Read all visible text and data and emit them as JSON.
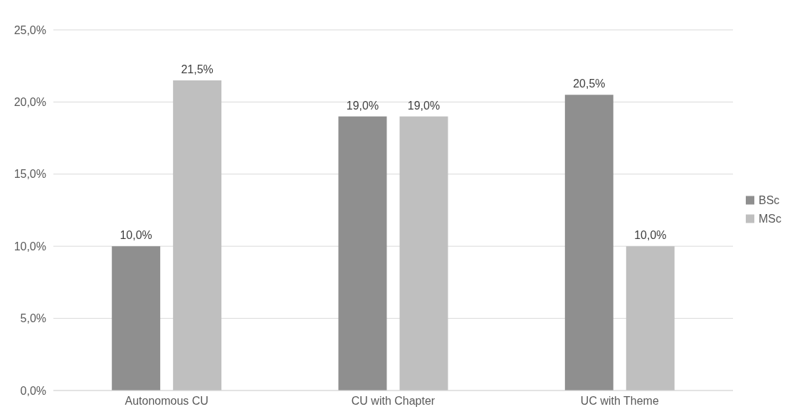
{
  "chart_data": {
    "type": "bar",
    "categories": [
      "Autonomous CU",
      "CU with Chapter",
      "UC with Theme"
    ],
    "series": [
      {
        "name": "BSc",
        "color": "#8f8f8f",
        "values": [
          10,
          19,
          20.5
        ],
        "value_labels": [
          "10,0%",
          "19,0%",
          "20,5%"
        ]
      },
      {
        "name": "MSc",
        "color": "#bfbfbf",
        "values": [
          21.5,
          19,
          10
        ],
        "value_labels": [
          "21,5%",
          "19,0%",
          "10,0%"
        ]
      }
    ],
    "ylim": [
      0,
      25
    ],
    "yticks": [
      {
        "value": 0,
        "label": "0,0%"
      },
      {
        "value": 5,
        "label": "5,0%"
      },
      {
        "value": 10,
        "label": "10,0%"
      },
      {
        "value": 15,
        "label": "15,0%"
      },
      {
        "value": 20,
        "label": "20,0%"
      },
      {
        "value": 25,
        "label": "25,0%"
      }
    ],
    "grid": "y",
    "legend": "right"
  }
}
